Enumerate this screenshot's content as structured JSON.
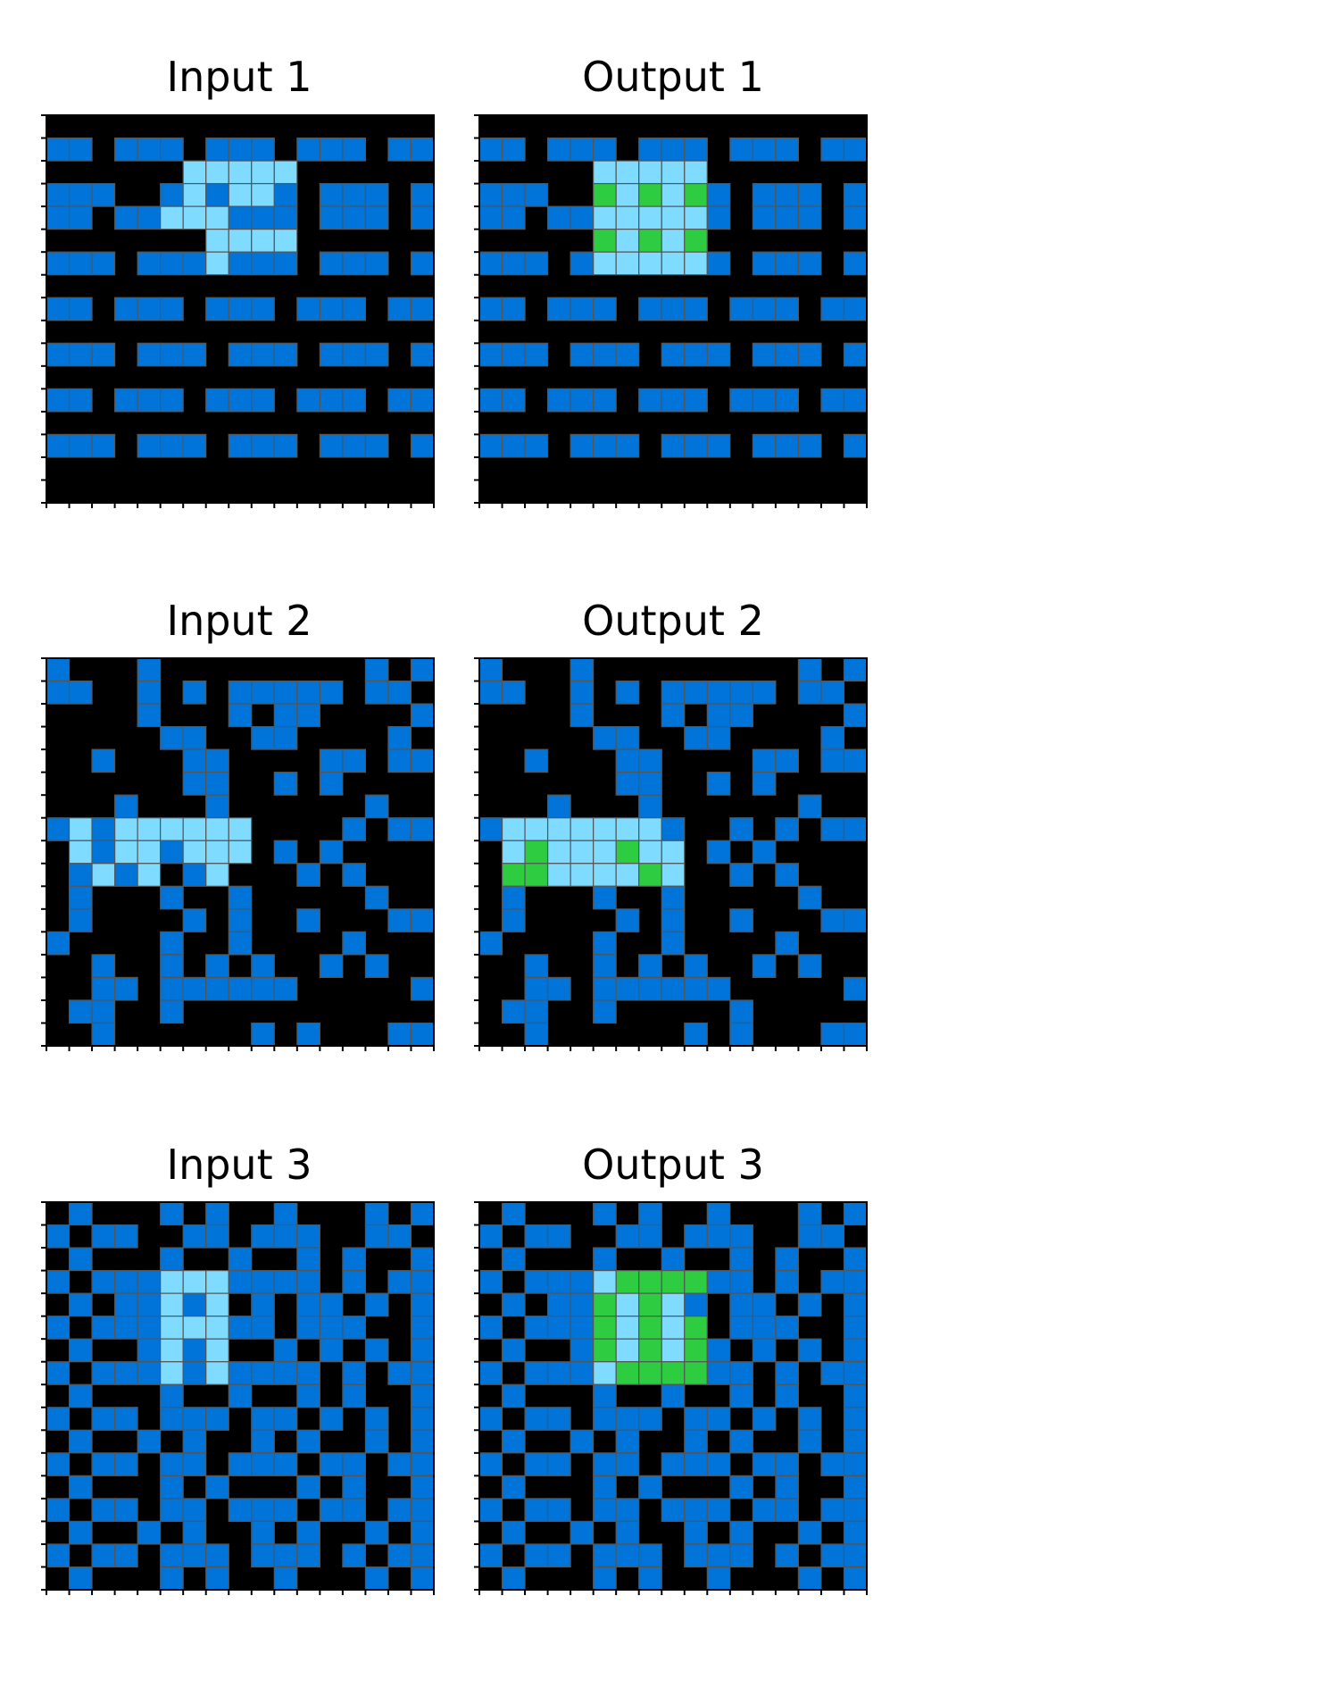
{
  "colors": {
    "0": "#000000",
    "1": "#0074D9",
    "3": "#2ECC40",
    "8": "#7FDBFF",
    "gridline": "#555555",
    "frame": "#000000",
    "tick": "#000000"
  },
  "pairs": [
    {
      "input": {
        "title": "Input 1",
        "grid": [
          "00000000000000000",
          "11011101110111011",
          "00000088888000000",
          "11100181881011101",
          "11011888111011101",
          "00000008888000000",
          "11101118111011101",
          "00000000000000000",
          "11011101110111011",
          "00000000000000000",
          "11101110111011101",
          "00000000000000000",
          "11011101110111011",
          "00000000000000000",
          "11101110111011101",
          "00000000000000000",
          "00000000000000000"
        ]
      },
      "output": {
        "title": "Output 1",
        "grid": [
          "00000000000000000",
          "11011101110111011",
          "00000888880000000",
          "11100383831011101",
          "11011888881011101",
          "00000383830000000",
          "11101888881011101",
          "00000000000000000",
          "11011101110111011",
          "00000000000000000",
          "11101110111011101",
          "00000000000000000",
          "11011101110111011",
          "00000000000000000",
          "11101110111011101",
          "00000000000000000",
          "00000000000000000"
        ]
      }
    },
    {
      "input": {
        "title": "Input 2",
        "grid": [
          "10001000000000101",
          "11001010111110110",
          "00001000101100001",
          "00000110011000010",
          "00100011000011011",
          "00000011001010000",
          "00010001000000100",
          "18188888800001011",
          "08188188801010000",
          "01818018000101000",
          "01000100100000100",
          "01000010100100011",
          "10000100100001000",
          "00100101010010100",
          "00110111111000001",
          "01100100000000000",
          "00100000010100011"
        ]
      },
      "output": {
        "title": "Output 2",
        "grid": [
          "10001000000000101",
          "11001010111110110",
          "00001000101100001",
          "00000110011000010",
          "00100011000011011",
          "00000011001010000",
          "00010001000000100",
          "18888888100101011",
          "08388838801010000",
          "03388883800101000",
          "01000100100000100",
          "01000010100100011",
          "10000100100001000",
          "00100101010010100",
          "00110111111000001",
          "01100100000100000",
          "00100000010100011"
        ]
      }
    },
    {
      "input": {
        "title": "Input 3",
        "grid": [
          "01000101001000101",
          "10110011011100110",
          "01000100100101001",
          "10111888111101011",
          "01011818010110101",
          "10111888110111001",
          "01001818001010101",
          "10111818111101011",
          "01000100100101001",
          "10110111011010101",
          "01001010010100101",
          "10110110111011011",
          "01000101000101001",
          "10110110111011011",
          "01001010010100101",
          "10110111011101011",
          "01000101001000101"
        ]
      },
      "output": {
        "title": "Output 3",
        "grid": [
          "01000101001000101",
          "10110011011100110",
          "01000100100101001",
          "10111833331101011",
          "01011383810110101",
          "10111383830111001",
          "01001383831010101",
          "10111833331101011",
          "01000100100101001",
          "10110111011010101",
          "01001010010100101",
          "10110110111011011",
          "01000101000101001",
          "10110110111011011",
          "01001010010100101",
          "10110111011101011",
          "01000101001000101"
        ]
      }
    }
  ]
}
